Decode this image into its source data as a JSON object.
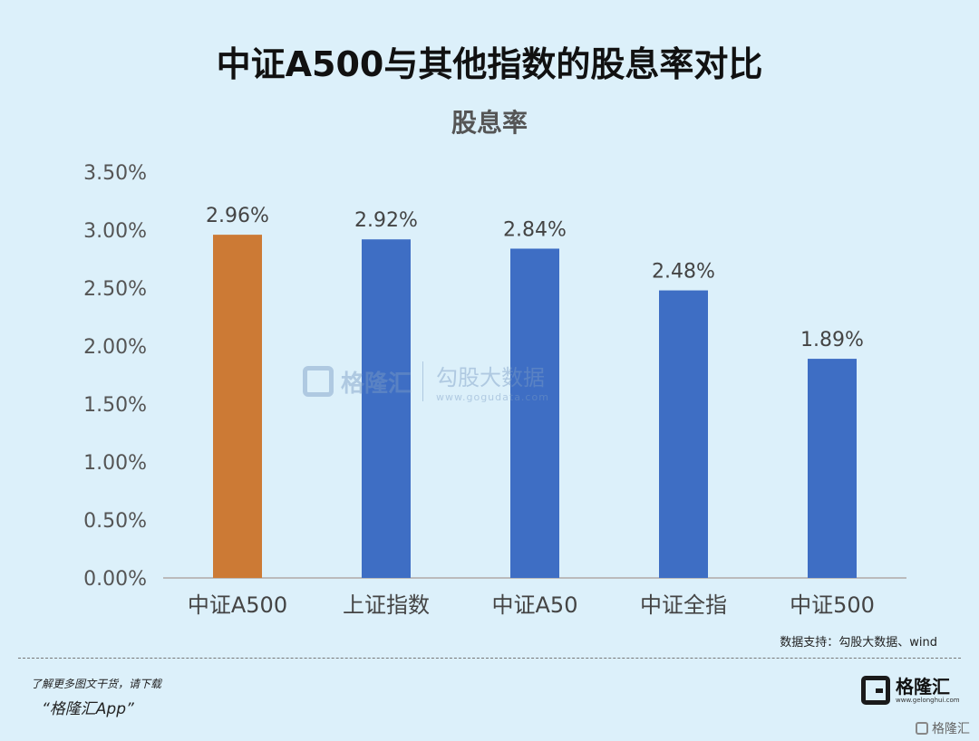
{
  "header": {
    "title": "中证A500与其他指数的股息率对比"
  },
  "chart_data": {
    "type": "bar",
    "title": "股息率",
    "categories": [
      "中证A500",
      "上证指数",
      "中证A50",
      "中证全指",
      "中证500"
    ],
    "values": [
      2.96,
      2.92,
      2.84,
      2.48,
      1.89
    ],
    "data_labels": [
      "2.96%",
      "2.92%",
      "2.84%",
      "2.48%",
      "1.89%"
    ],
    "bar_colors": [
      "#cc7a35",
      "#3e6ec4",
      "#3e6ec4",
      "#3e6ec4",
      "#3e6ec4"
    ],
    "ylim": [
      0,
      3.5
    ],
    "yticks": [
      0,
      0.5,
      1.0,
      1.5,
      2.0,
      2.5,
      3.0,
      3.5
    ],
    "ytick_labels": [
      "0.00%",
      "0.50%",
      "1.00%",
      "1.50%",
      "2.00%",
      "2.50%",
      "3.00%",
      "3.50%"
    ],
    "grid": false,
    "legend": false
  },
  "watermark": {
    "brand": "格隆汇",
    "product": "勾股大数据",
    "url": "www.gogudata.com"
  },
  "source": "数据支持：勾股大数据、wind",
  "footer": {
    "promo_line1": "了解更多图文干货，请下载",
    "promo_line2": "“格隆汇App”",
    "brand_name": "格隆汇",
    "brand_url": "www.gelonghui.com",
    "corner_mark": "格隆汇"
  }
}
